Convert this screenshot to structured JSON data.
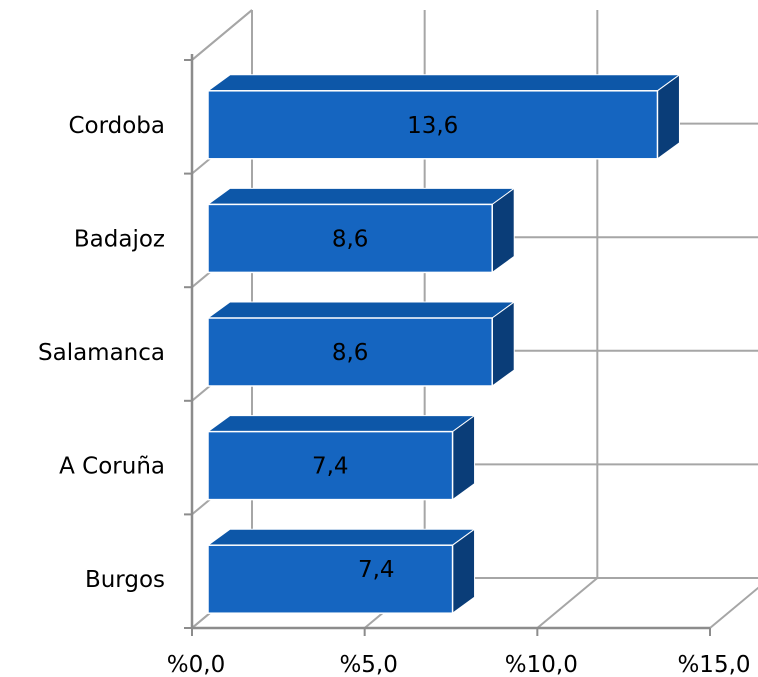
{
  "chart_data": {
    "type": "bar",
    "orientation": "horizontal",
    "three_d": true,
    "categories": [
      "Cordoba",
      "Badajoz",
      "Salamanca",
      "A Coruña",
      "Burgos"
    ],
    "values": [
      13.6,
      8.6,
      8.6,
      7.4,
      7.4
    ],
    "value_labels": [
      "13,6",
      "8,6",
      "8,6",
      "7,4",
      "7,4"
    ],
    "x_ticks": [
      0,
      5,
      10,
      15
    ],
    "x_tick_labels": [
      "%0,0",
      "%5,0",
      "%10,0",
      "%15,0"
    ],
    "xlim": [
      0,
      15
    ],
    "grid": true,
    "legend": "none",
    "colors": {
      "bar_front": "#1565c0",
      "bar_top": "#0d57a8",
      "bar_side": "#0a3d78",
      "bar_edge": "#ffffff",
      "grid": "#a6a6a6",
      "axis": "#8c8c8c"
    }
  }
}
